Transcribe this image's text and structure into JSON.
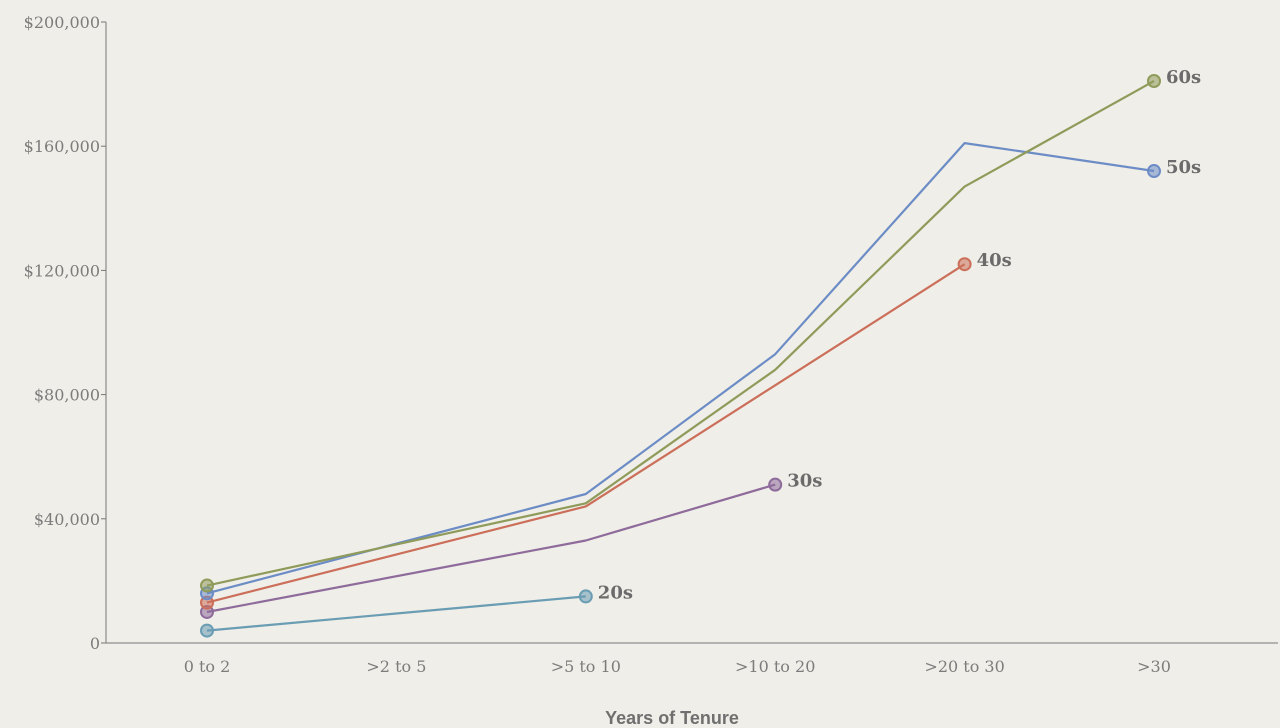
{
  "chart_data": {
    "type": "line",
    "title": "",
    "xlabel": "Years of Tenure",
    "ylabel": "",
    "categories": [
      "0 to 2",
      ">2 to 5",
      ">5 to 10",
      ">10 to 20",
      ">20 to 30",
      ">30"
    ],
    "y_ticks": [
      "0",
      "$40,000",
      "$80,000",
      "$120,000",
      "$160,000",
      "$200,000"
    ],
    "ylim": [
      0,
      200000
    ],
    "grid": false,
    "legend": "labels at series end",
    "series": [
      {
        "name": "20s",
        "color": "#6a9db3",
        "values": [
          4000,
          null,
          15000,
          null,
          null,
          null
        ]
      },
      {
        "name": "30s",
        "color": "#8e6b9b",
        "values": [
          10000,
          null,
          33000,
          51000,
          null,
          null
        ]
      },
      {
        "name": "40s",
        "color": "#cc6f5a",
        "values": [
          13000,
          null,
          44000,
          83000,
          122000,
          null
        ]
      },
      {
        "name": "50s",
        "color": "#6c8cc6",
        "values": [
          16000,
          null,
          48000,
          93000,
          161000,
          152000
        ]
      },
      {
        "name": "60s",
        "color": "#8f9b5a",
        "values": [
          18500,
          null,
          45000,
          88000,
          147000,
          181000
        ]
      }
    ]
  }
}
